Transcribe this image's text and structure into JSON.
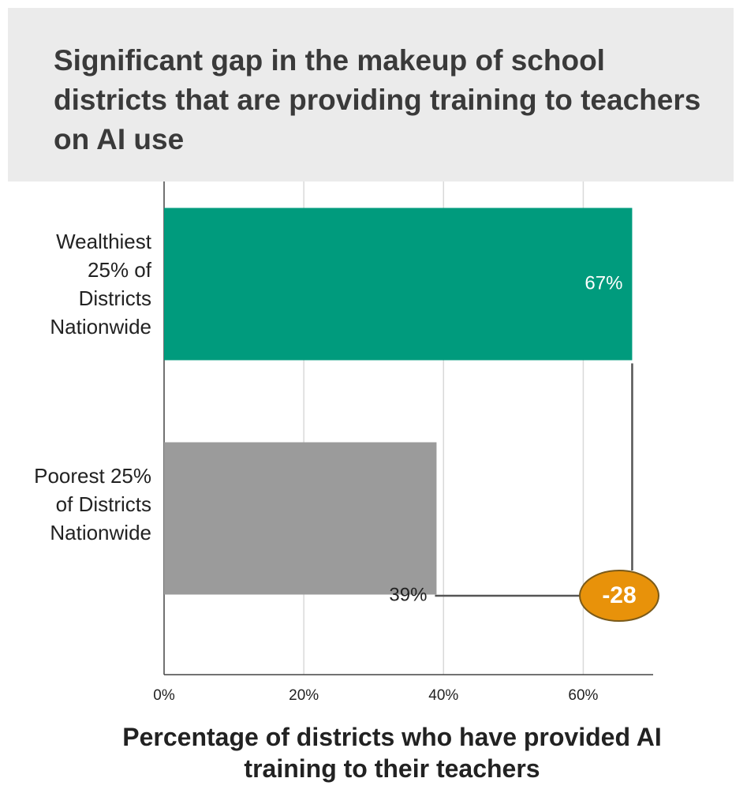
{
  "chart_data": {
    "type": "bar",
    "orientation": "horizontal",
    "title": "Significant gap in the makeup of school districts that are providing training to teachers on AI use",
    "x_label": "Percentage of districts who have provided AI training to their teachers",
    "categories": [
      "Wealthiest 25% of Districts Nationwide",
      "Poorest 25% of Districts Nationwide"
    ],
    "values": [
      67,
      39
    ],
    "value_labels": [
      "67%",
      "39%"
    ],
    "colors": [
      "#009b7d",
      "#9b9b9b"
    ],
    "value_label_colors": [
      "#ffffff",
      "#222222"
    ],
    "annotation": "-28",
    "annotation_color": "#e8920a",
    "xlim": [
      0,
      70
    ],
    "xticks": [
      {
        "value": 0,
        "label": "0%"
      },
      {
        "value": 20,
        "label": "20%"
      },
      {
        "value": 40,
        "label": "40%"
      },
      {
        "value": 60,
        "label": "60%"
      }
    ],
    "grid": true
  }
}
